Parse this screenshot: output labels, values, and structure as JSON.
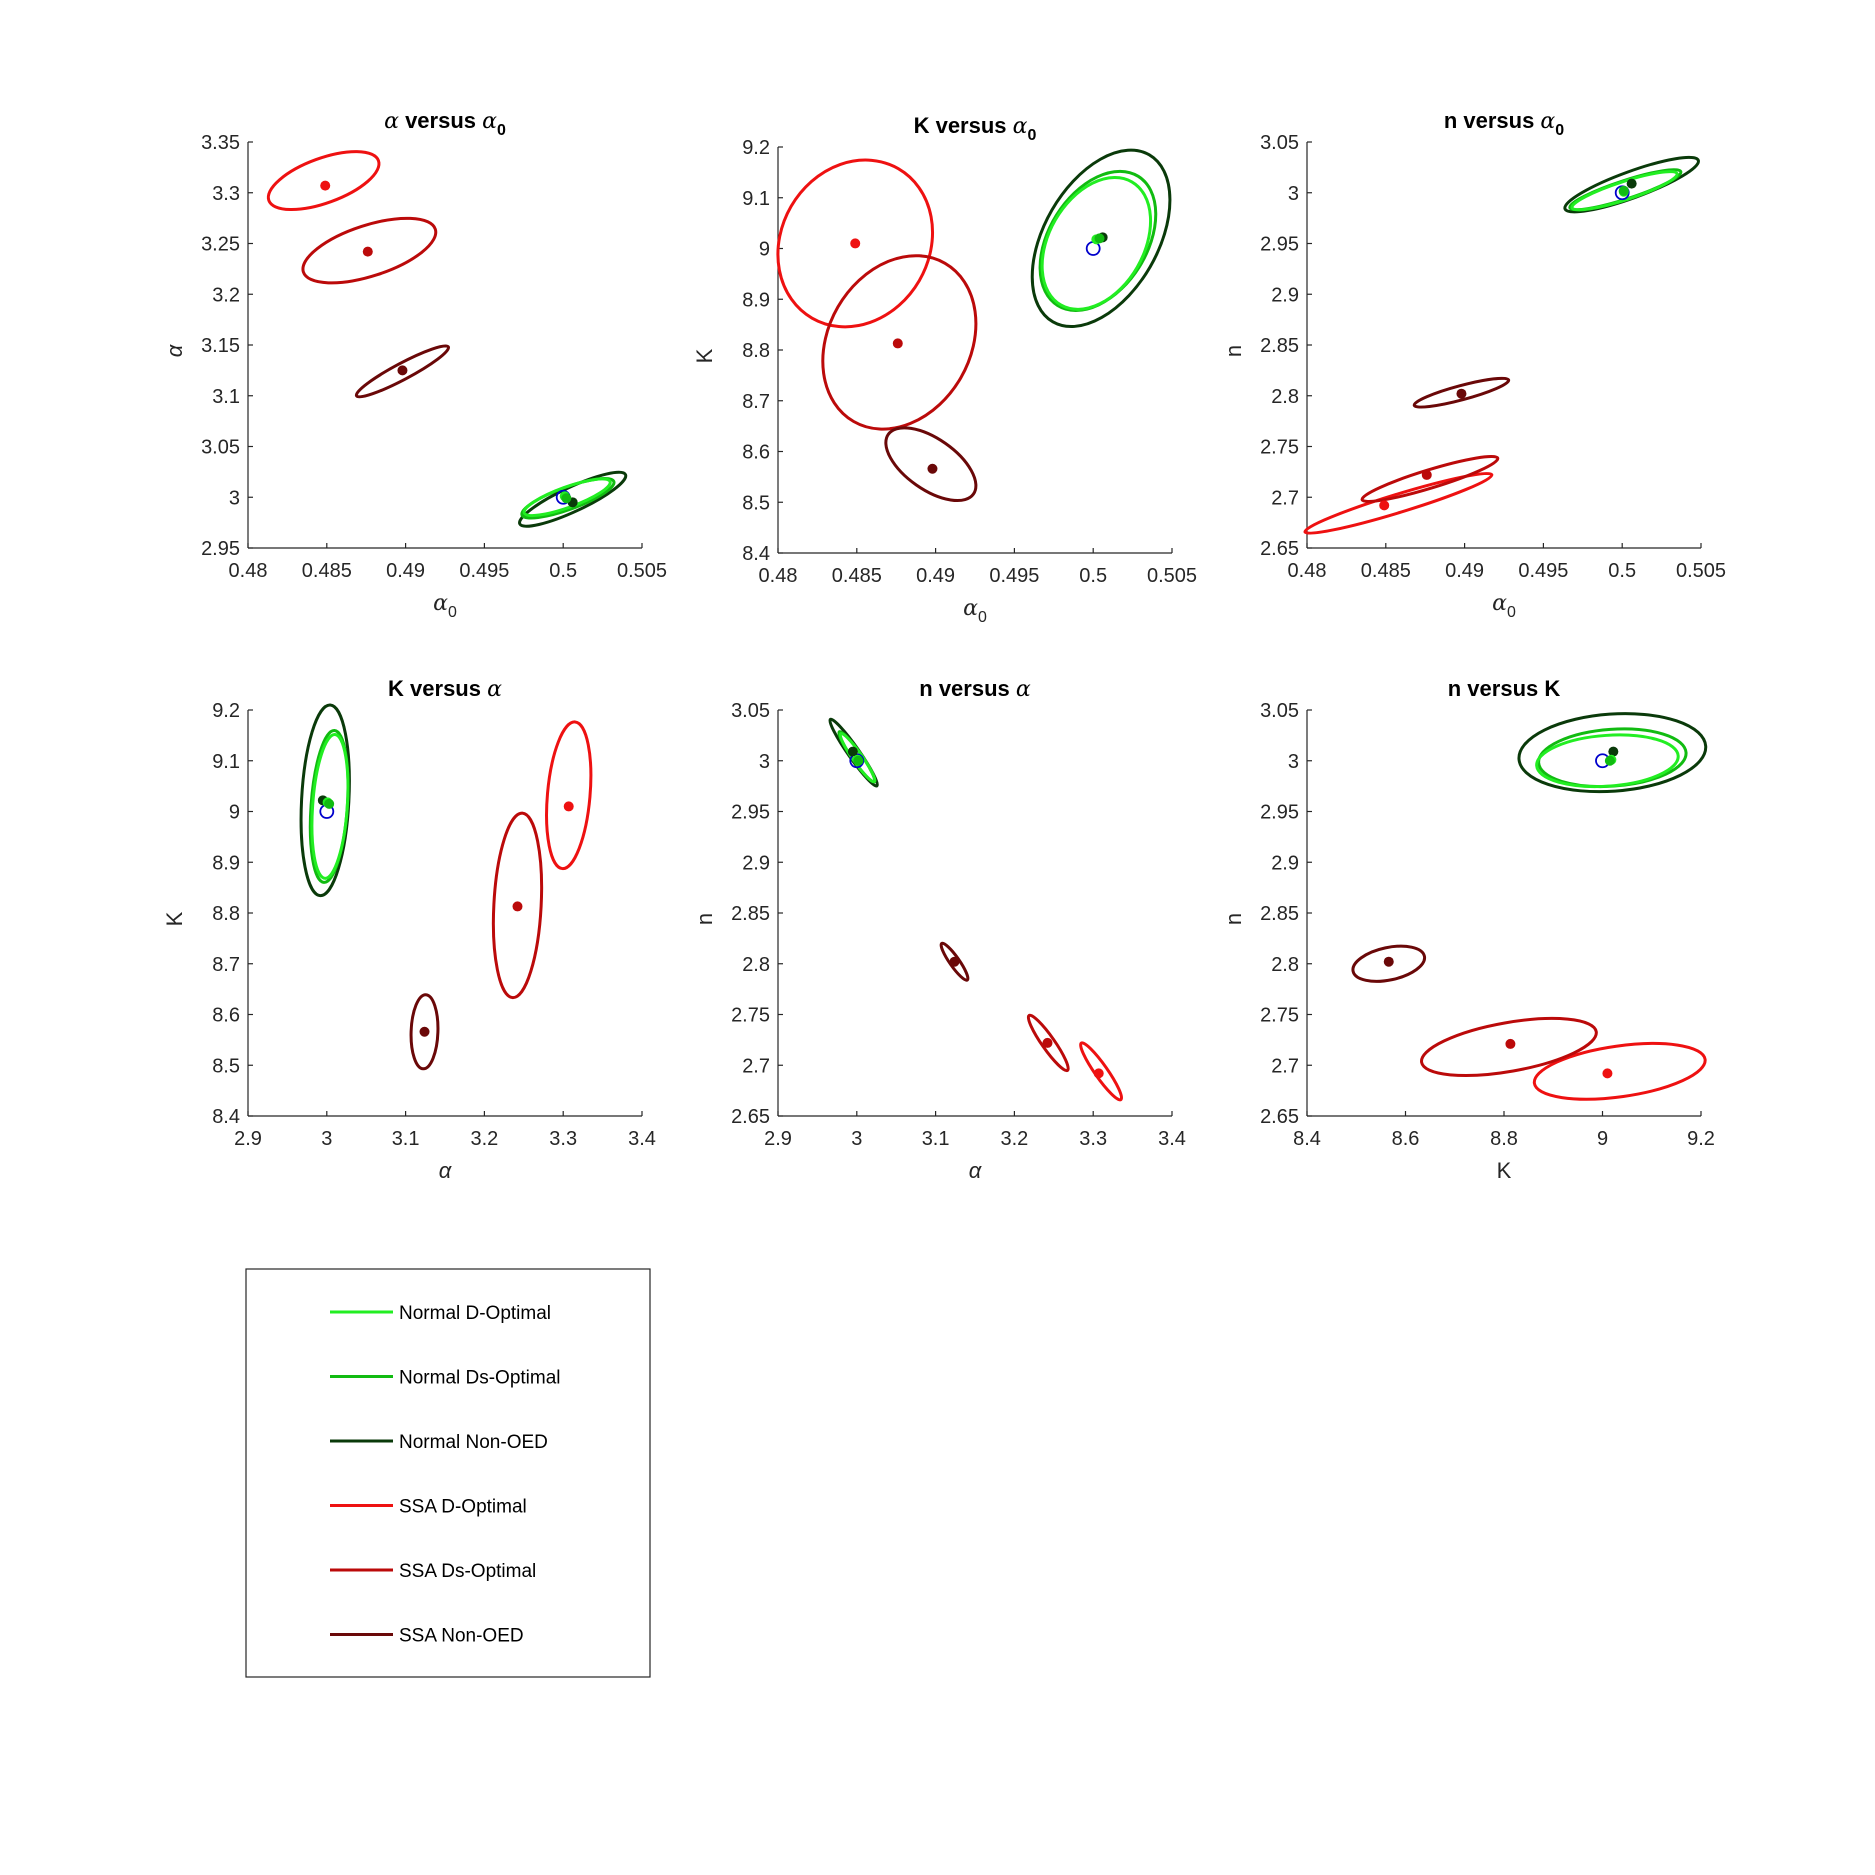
{
  "chart_data": [
    {
      "type": "scatter",
      "title": "α versus α₀",
      "title_parts": [
        "α",
        " versus ",
        "α",
        "0"
      ],
      "xlabel": "α0",
      "ylabel": "α",
      "xlim": [
        0.48,
        0.505
      ],
      "ylim": [
        2.95,
        3.35
      ],
      "xticks": [
        "0.48",
        "0.485",
        "0.49",
        "0.495",
        "0.5",
        "0.505"
      ],
      "yticks": [
        "2.95",
        "3",
        "3.05",
        "3.1",
        "3.15",
        "3.2",
        "3.25",
        "3.3",
        "3.35"
      ],
      "ellipses": [
        {
          "series": "SSA D-Optimal",
          "cx": 0.4848,
          "cy": 3.312,
          "rx": 0.0037,
          "ry": 0.022,
          "angle": -20
        },
        {
          "series": "SSA Ds-Optimal",
          "cx": 0.4877,
          "cy": 3.243,
          "rx": 0.0044,
          "ry": 0.025,
          "angle": -18
        },
        {
          "series": "SSA Non-OED",
          "cx": 0.4898,
          "cy": 3.124,
          "rx": 0.0033,
          "ry": 0.008,
          "angle": -28
        },
        {
          "series": "Normal Non-OED",
          "cx": 0.5006,
          "cy": 2.998,
          "rx": 0.0037,
          "ry": 0.012,
          "angle": -25
        },
        {
          "series": "Normal Ds-Optimal",
          "cx": 0.5003,
          "cy": 2.999,
          "rx": 0.0031,
          "ry": 0.011,
          "angle": -20
        },
        {
          "series": "Normal D-Optimal",
          "cx": 0.50025,
          "cy": 3.0,
          "rx": 0.0029,
          "ry": 0.01,
          "angle": -20
        }
      ],
      "points": [
        {
          "series": "SSA D-Optimal",
          "x": 0.4849,
          "y": 3.307
        },
        {
          "series": "SSA Ds-Optimal",
          "x": 0.4876,
          "y": 3.242
        },
        {
          "series": "SSA Non-OED",
          "x": 0.4898,
          "y": 3.125
        },
        {
          "series": "Normal Non-OED",
          "x": 0.5006,
          "y": 2.995
        },
        {
          "series": "Normal D-Optimal",
          "x": 0.5001,
          "y": 3.001
        },
        {
          "series": "Normal Ds-Optimal",
          "x": 0.5002,
          "y": 2.999
        }
      ],
      "true_value": {
        "x": 0.5,
        "y": 3.0
      }
    },
    {
      "type": "scatter",
      "title": "K versus α₀",
      "title_parts": [
        "",
        "K versus ",
        "α",
        "0"
      ],
      "xlabel": "α0",
      "ylabel": "K",
      "xlim": [
        0.48,
        0.505
      ],
      "ylim": [
        8.4,
        9.2
      ],
      "xticks": [
        "0.48",
        "0.485",
        "0.49",
        "0.495",
        "0.5",
        "0.505"
      ],
      "yticks": [
        "8.4",
        "8.5",
        "8.6",
        "8.7",
        "8.8",
        "8.9",
        "9",
        "9.1",
        "9.2"
      ],
      "ellipses": [
        {
          "series": "SSA D-Optimal",
          "cx": 0.4849,
          "cy": 9.01,
          "rx": 0.0047,
          "ry": 0.17,
          "angle": 30
        },
        {
          "series": "SSA Ds-Optimal",
          "cx": 0.4877,
          "cy": 8.815,
          "rx": 0.0045,
          "ry": 0.18,
          "angle": 30
        },
        {
          "series": "SSA Non-OED",
          "cx": 0.4897,
          "cy": 8.575,
          "rx": 0.0033,
          "ry": 0.05,
          "angle": 35
        },
        {
          "series": "Normal Non-OED",
          "cx": 0.5005,
          "cy": 9.02,
          "rx": 0.0036,
          "ry": 0.19,
          "angle": 30
        },
        {
          "series": "Normal Ds-Optimal",
          "cx": 0.5003,
          "cy": 9.015,
          "rx": 0.0031,
          "ry": 0.15,
          "angle": 32
        },
        {
          "series": "Normal D-Optimal",
          "cx": 0.5002,
          "cy": 9.01,
          "rx": 0.003,
          "ry": 0.14,
          "angle": 30
        }
      ],
      "points": [
        {
          "series": "SSA D-Optimal",
          "x": 0.4849,
          "y": 9.01
        },
        {
          "series": "SSA Ds-Optimal",
          "x": 0.4876,
          "y": 8.813
        },
        {
          "series": "SSA Non-OED",
          "x": 0.4898,
          "y": 8.566
        },
        {
          "series": "Normal Non-OED",
          "x": 0.5006,
          "y": 9.022
        },
        {
          "series": "Normal D-Optimal",
          "x": 0.5002,
          "y": 9.018
        },
        {
          "series": "Normal Ds-Optimal",
          "x": 0.5004,
          "y": 9.02
        }
      ],
      "true_value": {
        "x": 0.5,
        "y": 9.0
      }
    },
    {
      "type": "scatter",
      "title": "n versus α₀",
      "title_parts": [
        "",
        "n versus ",
        "α",
        "0"
      ],
      "xlabel": "α0",
      "ylabel": "n",
      "xlim": [
        0.48,
        0.505
      ],
      "ylim": [
        2.65,
        3.05
      ],
      "xticks": [
        "0.48",
        "0.485",
        "0.49",
        "0.495",
        "0.5",
        "0.505"
      ],
      "yticks": [
        "2.65",
        "2.7",
        "2.75",
        "2.8",
        "2.85",
        "2.9",
        "2.95",
        "3",
        "3.05"
      ],
      "ellipses": [
        {
          "series": "SSA D-Optimal",
          "cx": 0.4858,
          "cy": 2.694,
          "rx": 0.0062,
          "ry": 0.009,
          "angle": -17
        },
        {
          "series": "SSA Ds-Optimal",
          "cx": 0.4878,
          "cy": 2.718,
          "rx": 0.0045,
          "ry": 0.009,
          "angle": -17
        },
        {
          "series": "SSA Non-OED",
          "cx": 0.4898,
          "cy": 2.803,
          "rx": 0.0031,
          "ry": 0.007,
          "angle": -15
        },
        {
          "series": "Normal Non-OED",
          "cx": 0.5006,
          "cy": 3.008,
          "rx": 0.0045,
          "ry": 0.013,
          "angle": -20
        },
        {
          "series": "Normal Ds-Optimal",
          "cx": 0.5002,
          "cy": 3.003,
          "rx": 0.0037,
          "ry": 0.009,
          "angle": -18
        },
        {
          "series": "Normal D-Optimal",
          "cx": 0.50015,
          "cy": 3.002,
          "rx": 0.0035,
          "ry": 0.009,
          "angle": -18
        }
      ],
      "points": [
        {
          "series": "SSA D-Optimal",
          "x": 0.4849,
          "y": 2.692
        },
        {
          "series": "SSA Ds-Optimal",
          "x": 0.4876,
          "y": 2.722
        },
        {
          "series": "SSA Non-OED",
          "x": 0.4898,
          "y": 2.802
        },
        {
          "series": "Normal Non-OED",
          "x": 0.5006,
          "y": 3.009
        },
        {
          "series": "Normal D-Optimal",
          "x": 0.5001,
          "y": 3.001
        },
        {
          "series": "Normal Ds-Optimal",
          "x": 0.5001,
          "y": 3.002
        }
      ],
      "true_value": {
        "x": 0.5,
        "y": 3.0
      }
    },
    {
      "type": "scatter",
      "title": "K versus α",
      "title_parts": [
        "",
        "K versus ",
        "α",
        ""
      ],
      "xlabel": "α",
      "ylabel": "K",
      "xlim": [
        2.9,
        3.4
      ],
      "ylim": [
        8.4,
        9.2
      ],
      "xticks": [
        "2.9",
        "3",
        "3.1",
        "3.2",
        "3.3",
        "3.4"
      ],
      "yticks": [
        "8.4",
        "8.5",
        "8.6",
        "8.7",
        "8.8",
        "8.9",
        "9",
        "9.1",
        "9.2"
      ],
      "ellipses": [
        {
          "series": "SSA D-Optimal",
          "cx": 3.307,
          "cy": 9.032,
          "rx": 0.027,
          "ry": 0.145,
          "angle": 5
        },
        {
          "series": "SSA Ds-Optimal",
          "cx": 3.242,
          "cy": 8.815,
          "rx": 0.03,
          "ry": 0.182,
          "angle": 3
        },
        {
          "series": "SSA Non-OED",
          "cx": 3.124,
          "cy": 8.566,
          "rx": 0.017,
          "ry": 0.073,
          "angle": 2
        },
        {
          "series": "Normal Non-OED",
          "cx": 2.998,
          "cy": 9.022,
          "rx": 0.03,
          "ry": 0.188,
          "angle": 3
        },
        {
          "series": "Normal Ds-Optimal",
          "cx": 3.003,
          "cy": 9.01,
          "rx": 0.023,
          "ry": 0.15,
          "angle": 4
        },
        {
          "series": "Normal D-Optimal",
          "cx": 3.004,
          "cy": 9.01,
          "rx": 0.022,
          "ry": 0.142,
          "angle": 4
        }
      ],
      "points": [
        {
          "series": "SSA D-Optimal",
          "x": 3.307,
          "y": 9.01
        },
        {
          "series": "SSA Ds-Optimal",
          "x": 3.242,
          "y": 8.813
        },
        {
          "series": "SSA Non-OED",
          "x": 3.124,
          "y": 8.566
        },
        {
          "series": "Normal Non-OED",
          "x": 2.995,
          "y": 9.022
        },
        {
          "series": "Normal D-Optimal",
          "x": 3.001,
          "y": 9.018
        },
        {
          "series": "Normal Ds-Optimal",
          "x": 3.003,
          "y": 9.015
        }
      ],
      "true_value": {
        "x": 3.0,
        "y": 9.0
      }
    },
    {
      "type": "scatter",
      "title": "n versus α",
      "title_parts": [
        "",
        "n versus ",
        "α",
        ""
      ],
      "xlabel": "α",
      "ylabel": "n",
      "xlim": [
        2.9,
        3.4
      ],
      "ylim": [
        2.65,
        3.05
      ],
      "xticks": [
        "2.9",
        "3",
        "3.1",
        "3.2",
        "3.3",
        "3.4"
      ],
      "yticks": [
        "2.65",
        "2.7",
        "2.75",
        "2.8",
        "2.85",
        "2.9",
        "2.95",
        "3",
        "3.05"
      ],
      "ellipses": [
        {
          "series": "SSA D-Optimal",
          "cx": 3.31,
          "cy": 2.694,
          "rx": 0.008,
          "ry": 0.034,
          "angle": -35
        },
        {
          "series": "SSA Ds-Optimal",
          "cx": 3.243,
          "cy": 2.722,
          "rx": 0.008,
          "ry": 0.033,
          "angle": -35
        },
        {
          "series": "SSA Non-OED",
          "cx": 3.124,
          "cy": 2.802,
          "rx": 0.006,
          "ry": 0.022,
          "angle": -35
        },
        {
          "series": "Normal Non-OED",
          "cx": 2.996,
          "cy": 3.008,
          "rx": 0.007,
          "ry": 0.04,
          "angle": -35
        },
        {
          "series": "Normal Ds-Optimal",
          "cx": 3.0,
          "cy": 3.004,
          "rx": 0.006,
          "ry": 0.03,
          "angle": -35
        },
        {
          "series": "Normal D-Optimal",
          "cx": 3.001,
          "cy": 3.003,
          "rx": 0.006,
          "ry": 0.029,
          "angle": -35
        }
      ],
      "points": [
        {
          "series": "SSA D-Optimal",
          "x": 3.307,
          "y": 2.692
        },
        {
          "series": "SSA Ds-Optimal",
          "x": 3.242,
          "y": 2.722
        },
        {
          "series": "SSA Non-OED",
          "x": 3.124,
          "y": 2.802
        },
        {
          "series": "Normal Non-OED",
          "x": 2.995,
          "y": 3.009
        },
        {
          "series": "Normal D-Optimal",
          "x": 3.001,
          "y": 3.001
        },
        {
          "series": "Normal Ds-Optimal",
          "x": 3.002,
          "y": 3.0
        }
      ],
      "true_value": {
        "x": 3.0,
        "y": 3.0
      }
    },
    {
      "type": "scatter",
      "title": "n versus K",
      "title_parts": [
        "",
        "n versus K",
        "",
        ""
      ],
      "xlabel": "K",
      "ylabel": "n",
      "xlim": [
        8.4,
        9.2
      ],
      "ylim": [
        2.65,
        3.05
      ],
      "xticks": [
        "8.4",
        "8.6",
        "8.8",
        "9",
        "9.2"
      ],
      "yticks": [
        "2.65",
        "2.7",
        "2.75",
        "2.8",
        "2.85",
        "2.9",
        "2.95",
        "3",
        "3.05"
      ],
      "ellipses": [
        {
          "series": "SSA D-Optimal",
          "cx": 9.035,
          "cy": 2.694,
          "rx": 0.175,
          "ry": 0.025,
          "angle": -8
        },
        {
          "series": "SSA Ds-Optimal",
          "cx": 8.81,
          "cy": 2.718,
          "rx": 0.18,
          "ry": 0.024,
          "angle": -10
        },
        {
          "series": "SSA Non-OED",
          "cx": 8.566,
          "cy": 2.8,
          "rx": 0.074,
          "ry": 0.016,
          "angle": -12
        },
        {
          "series": "Normal Non-OED",
          "cx": 9.02,
          "cy": 3.008,
          "rx": 0.19,
          "ry": 0.038,
          "angle": -4
        },
        {
          "series": "Normal Ds-Optimal",
          "cx": 9.02,
          "cy": 3.003,
          "rx": 0.15,
          "ry": 0.028,
          "angle": -4
        },
        {
          "series": "Normal D-Optimal",
          "cx": 9.01,
          "cy": 3.0,
          "rx": 0.144,
          "ry": 0.025,
          "angle": -4
        }
      ],
      "points": [
        {
          "series": "SSA D-Optimal",
          "x": 9.01,
          "y": 2.692
        },
        {
          "series": "SSA Ds-Optimal",
          "x": 8.813,
          "y": 2.721
        },
        {
          "series": "SSA Non-OED",
          "x": 8.566,
          "y": 2.802
        },
        {
          "series": "Normal Non-OED",
          "x": 9.022,
          "y": 3.009
        },
        {
          "series": "Normal D-Optimal",
          "x": 9.018,
          "y": 3.001
        },
        {
          "series": "Normal Ds-Optimal",
          "x": 9.015,
          "y": 3.0
        }
      ],
      "true_value": {
        "x": 9.0,
        "y": 3.0
      }
    }
  ],
  "legend": {
    "placement": "bottom-left",
    "entries": [
      {
        "name": "Normal D-Optimal",
        "color": "#22ee22"
      },
      {
        "name": "Normal Ds-Optimal",
        "color": "#11bb11"
      },
      {
        "name": "Normal Non-OED",
        "color": "#0a3a0a"
      },
      {
        "name": "SSA D-Optimal",
        "color": "#ee1111"
      },
      {
        "name": "SSA Ds-Optimal",
        "color": "#bb0a0a"
      },
      {
        "name": "SSA Non-OED",
        "color": "#6a0808"
      }
    ]
  },
  "colors": {
    "true_marker": "#0000cc",
    "axis": "#262626"
  }
}
